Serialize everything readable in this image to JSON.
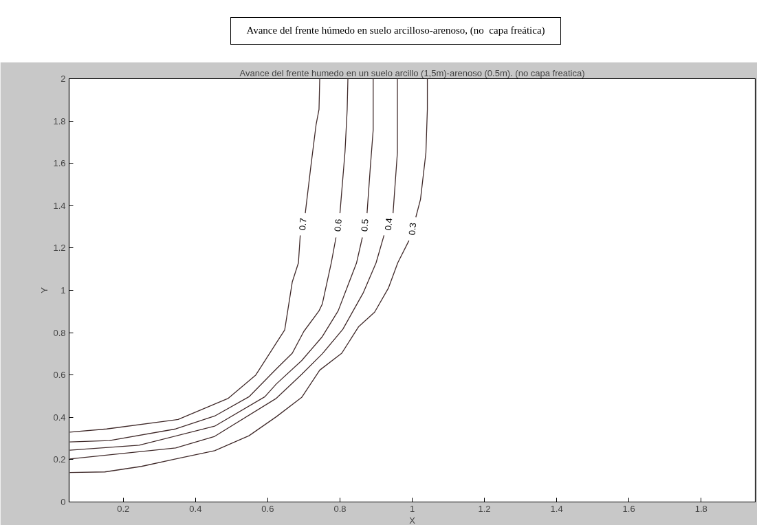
{
  "chart_data": {
    "type": "line",
    "title": "Avance del frente húmedo en suelo arcilloso-arenoso, (no  capa freática)",
    "subtitle": "Avance del frente humedo en un suelo arcillo (1,5m)-arenoso (0.5m). (no capa freatica)",
    "xlabel": "X",
    "ylabel": "Y",
    "xlim": [
      0.05,
      1.95
    ],
    "ylim": [
      0,
      2
    ],
    "xticks": [
      0.2,
      0.4,
      0.6,
      0.8,
      1,
      1.2,
      1.4,
      1.6,
      1.8
    ],
    "yticks": [
      0,
      0.2,
      0.4,
      0.6,
      0.8,
      1,
      1.2,
      1.4,
      1.6,
      1.8,
      2
    ],
    "grid": false,
    "legend": false,
    "marker": "none",
    "line_style": "solid",
    "series": [
      {
        "name": "0.7",
        "color": "#402a2a",
        "x": [
          0.052,
          0.154,
          0.352,
          0.491,
          0.567,
          0.624,
          0.647,
          0.668,
          0.685,
          0.69,
          null,
          0.704,
          0.719,
          0.734,
          0.742,
          0.744
        ],
        "values": [
          0.33,
          0.345,
          0.39,
          0.49,
          0.6,
          0.752,
          0.813,
          1.04,
          1.13,
          1.26,
          null,
          1.365,
          1.58,
          1.784,
          1.855,
          2
        ]
      },
      {
        "name": "0.6",
        "color": "#402a2a",
        "x": [
          0.052,
          0.162,
          0.345,
          0.453,
          0.548,
          0.624,
          0.668,
          0.7,
          0.742,
          0.751,
          0.776,
          0.789,
          null,
          0.8,
          0.814,
          0.82,
          0.822
        ],
        "values": [
          0.284,
          0.29,
          0.345,
          0.406,
          0.497,
          0.629,
          0.703,
          0.806,
          0.903,
          0.935,
          1.13,
          1.25,
          null,
          1.365,
          1.655,
          1.855,
          2
        ]
      },
      {
        "name": "0.5",
        "color": "#402a2a",
        "x": [
          0.052,
          0.244,
          0.453,
          0.592,
          0.624,
          0.694,
          0.751,
          0.795,
          0.846,
          0.862,
          null,
          0.875,
          0.884,
          0.892,
          0.892
        ],
        "values": [
          0.245,
          0.268,
          0.358,
          0.497,
          0.558,
          0.668,
          0.781,
          0.903,
          1.13,
          1.25,
          null,
          1.365,
          1.58,
          1.758,
          2
        ]
      },
      {
        "name": "0.4",
        "color": "#402a2a",
        "x": [
          0.052,
          0.345,
          0.453,
          0.624,
          0.694,
          0.751,
          0.808,
          0.865,
          0.9,
          0.922,
          null,
          0.947,
          0.959,
          0.959
        ],
        "values": [
          0.203,
          0.255,
          0.31,
          0.49,
          0.603,
          0.7,
          0.816,
          0.99,
          1.13,
          1.26,
          null,
          1.365,
          1.65,
          2
        ]
      },
      {
        "name": "0.3",
        "color": "#402a2a",
        "x": [
          0.052,
          0.149,
          0.25,
          0.345,
          0.453,
          0.548,
          0.624,
          0.694,
          0.744,
          0.805,
          0.852,
          0.896,
          0.934,
          0.96,
          0.991,
          null,
          1.01,
          1.023,
          1.038,
          1.042,
          1.042
        ],
        "values": [
          0.139,
          0.142,
          0.168,
          0.203,
          0.242,
          0.313,
          0.403,
          0.494,
          0.623,
          0.703,
          0.829,
          0.897,
          1.01,
          1.13,
          1.235,
          null,
          1.345,
          1.43,
          1.65,
          1.855,
          2
        ]
      }
    ]
  }
}
